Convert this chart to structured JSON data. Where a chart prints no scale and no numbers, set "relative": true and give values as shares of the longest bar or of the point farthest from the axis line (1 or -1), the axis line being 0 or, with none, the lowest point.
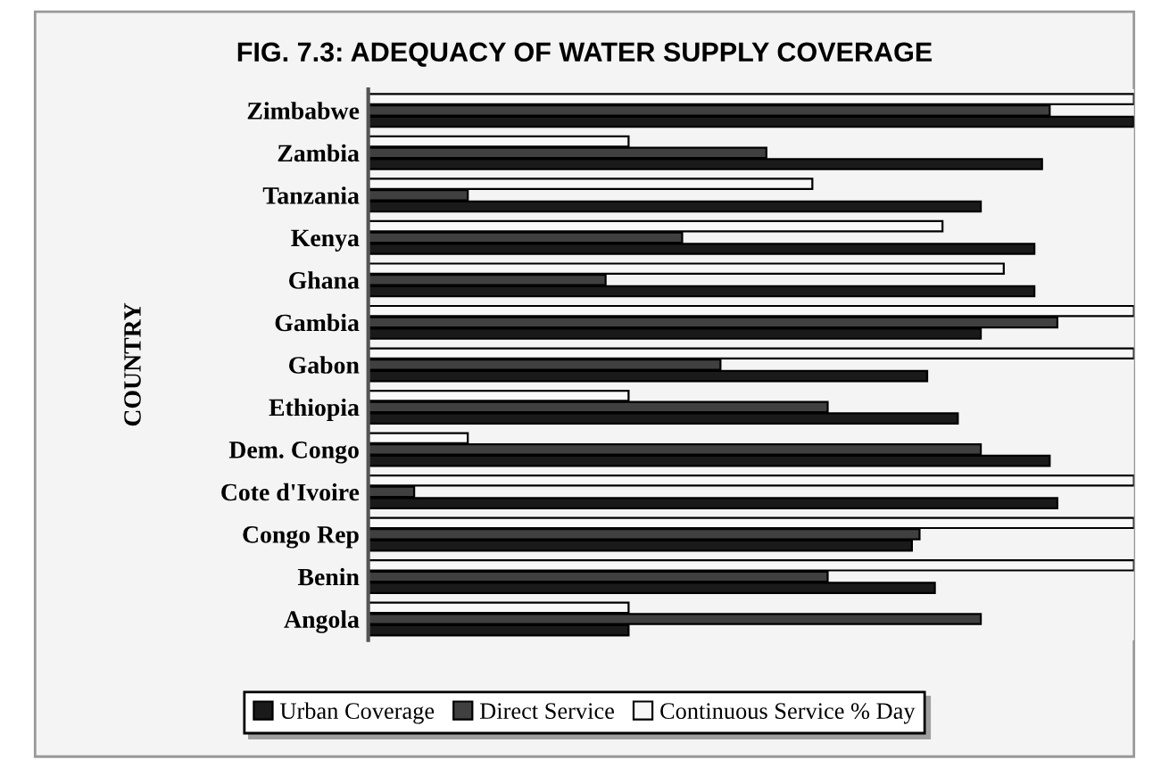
{
  "chart_data": {
    "type": "bar",
    "orientation": "horizontal",
    "relative": true,
    "title": "FIG. 7.3: ADEQUACY OF WATER SUPPLY COVERAGE",
    "ylabel": "COUNTRY",
    "tick_labels": "y",
    "legend": "bottom",
    "grid": false,
    "categories": [
      "Zimbabwe",
      "Zambia",
      "Tanzania",
      "Kenya",
      "Ghana",
      "Gambia",
      "Gabon",
      "Ethiopia",
      "Dem. Congo",
      "Cote d'Ivoire",
      "Congo Rep",
      "Benin",
      "Angola"
    ],
    "series": [
      {
        "name": "Urban Coverage",
        "color": "#1a1a1a",
        "values": [
          1.0,
          0.88,
          0.8,
          0.87,
          0.87,
          0.8,
          0.73,
          0.77,
          0.89,
          0.9,
          0.71,
          0.74,
          0.34
        ]
      },
      {
        "name": "Direct Service",
        "color": "#404040",
        "values": [
          0.89,
          0.52,
          0.13,
          0.41,
          0.31,
          0.9,
          0.46,
          0.6,
          0.8,
          0.06,
          0.72,
          0.6,
          0.8
        ]
      },
      {
        "name": "Continuous Service % Day",
        "color": "#f8f8f8",
        "values": [
          1.0,
          0.34,
          0.58,
          0.75,
          0.83,
          1.0,
          1.0,
          0.34,
          0.13,
          1.0,
          1.0,
          1.0,
          0.34
        ]
      }
    ]
  }
}
